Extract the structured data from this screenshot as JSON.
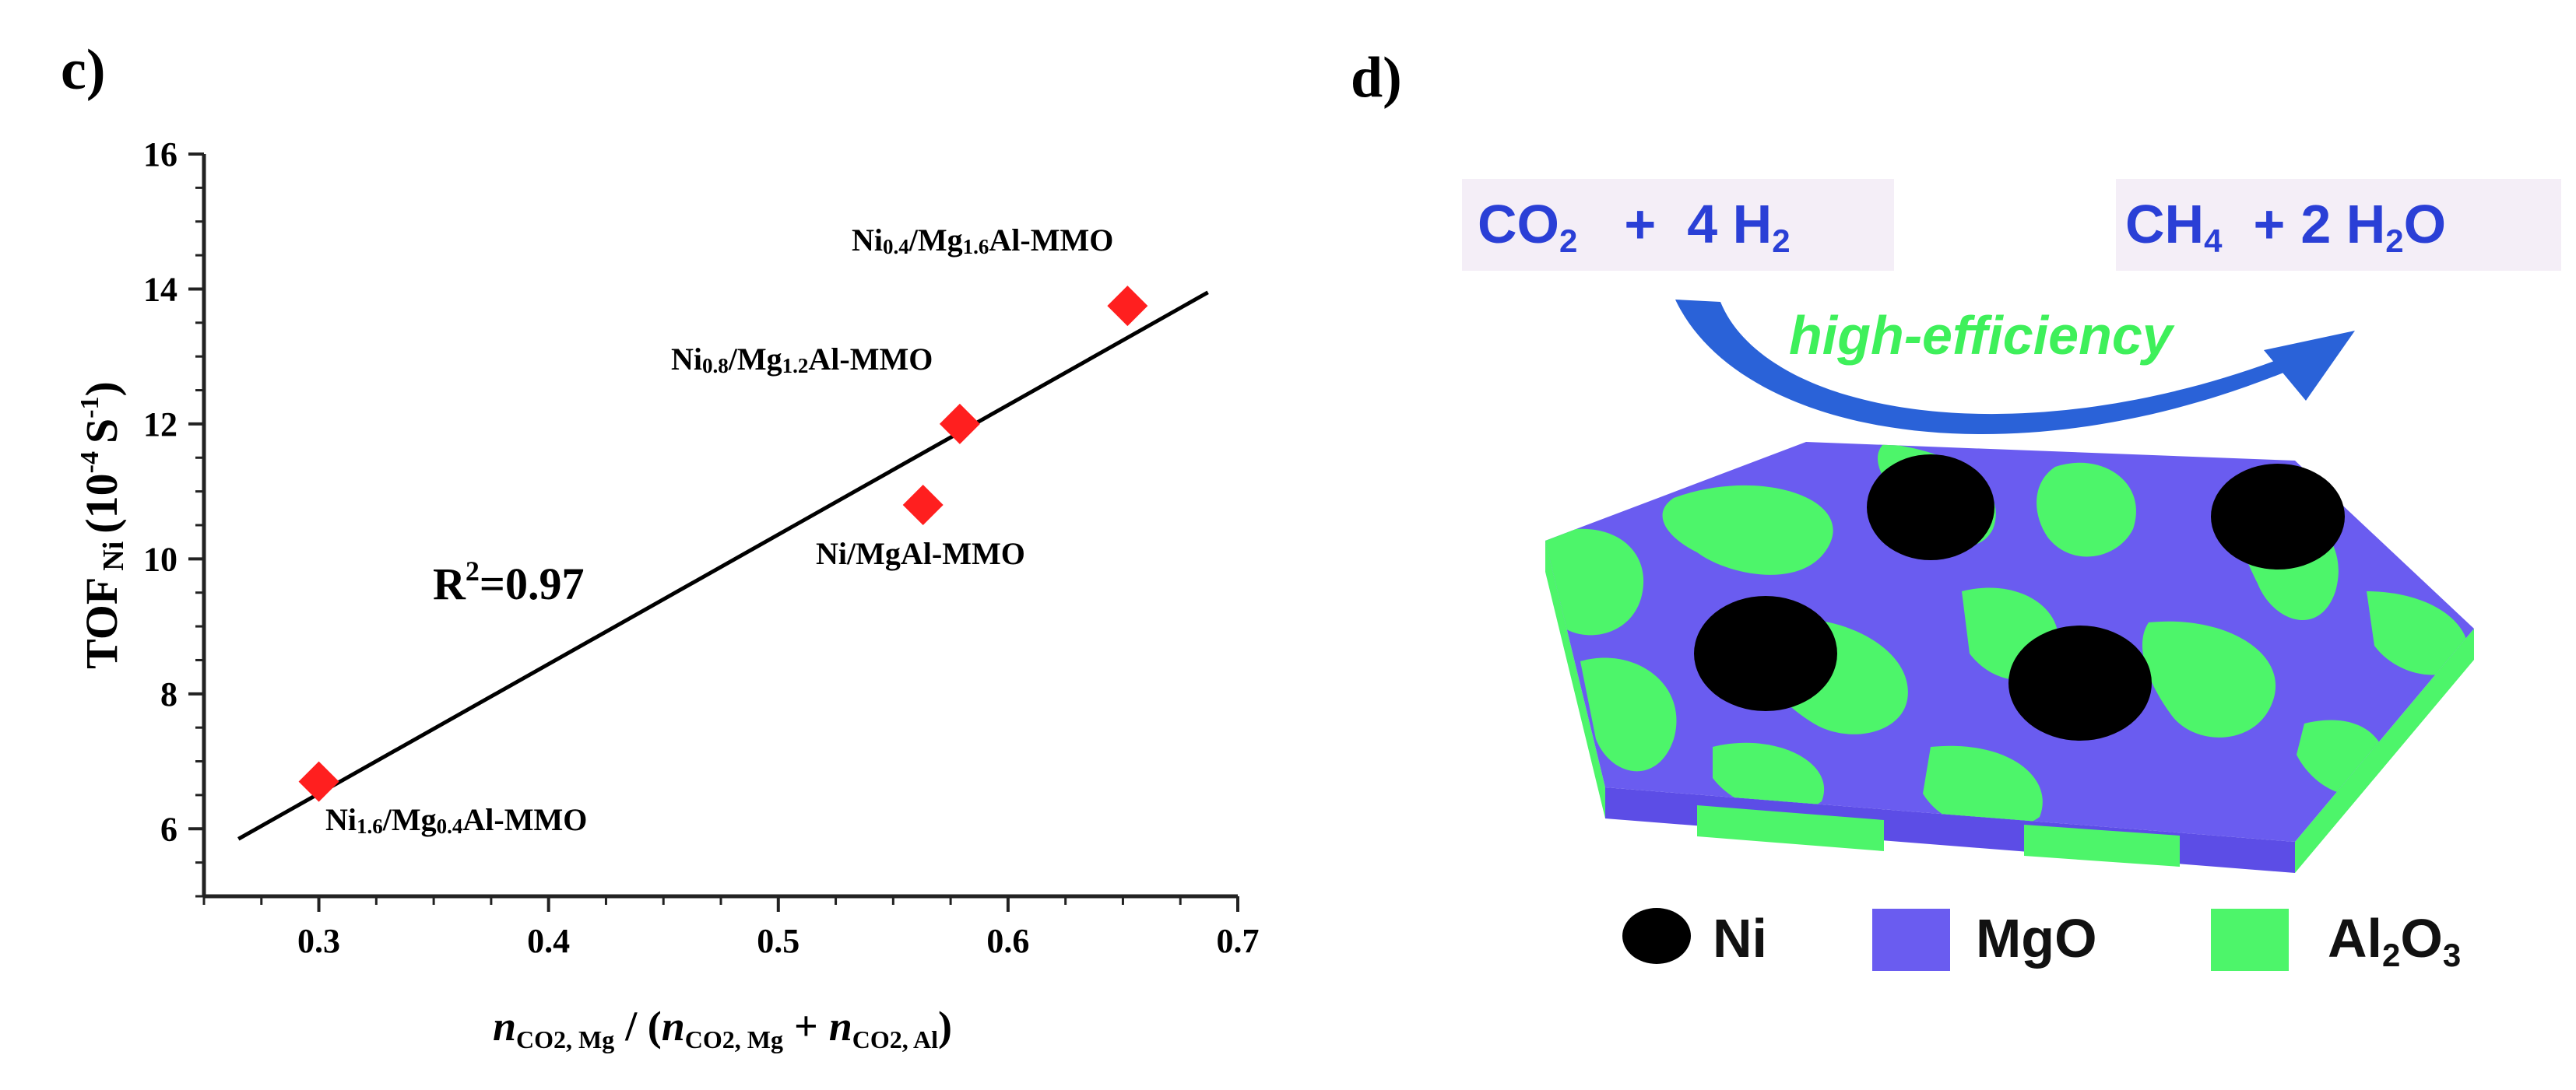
{
  "panel_c_label": "c)",
  "panel_d_label": "d)",
  "chart_data": {
    "type": "scatter",
    "title": "",
    "xlabel": "nCO2, Mg / (nCO2, Mg + nCO2, Al)",
    "ylabel": "TOF Ni (10^-4 S^-1)",
    "xlim": [
      0.25,
      0.7
    ],
    "ylim": [
      5,
      16
    ],
    "xticks": [
      0.3,
      0.4,
      0.5,
      0.6,
      0.7
    ],
    "yticks": [
      6,
      8,
      10,
      12,
      14,
      16
    ],
    "xtick_labels": [
      "0.3",
      "0.4",
      "0.5",
      "0.6",
      "0.7"
    ],
    "ytick_labels": [
      "6",
      "8",
      "10",
      "12",
      "14",
      "16"
    ],
    "marker_color": "#ff1f1f",
    "points": [
      {
        "x": 0.3,
        "y": 6.7,
        "label_main": "Ni",
        "label_sub1": "1.6",
        "label_mid": "/Mg",
        "label_sub2": "0.4",
        "label_end": "Al-MMO"
      },
      {
        "x": 0.563,
        "y": 10.8,
        "label_main": "Ni/MgAl-MMO",
        "label_sub1": "",
        "label_mid": "",
        "label_sub2": "",
        "label_end": ""
      },
      {
        "x": 0.579,
        "y": 12.0,
        "label_main": "Ni",
        "label_sub1": "0.8",
        "label_mid": "/Mg",
        "label_sub2": "1.2",
        "label_end": "Al-MMO"
      },
      {
        "x": 0.652,
        "y": 13.75,
        "label_main": "Ni",
        "label_sub1": "0.4",
        "label_mid": "/Mg",
        "label_sub2": "1.6",
        "label_end": "Al-MMO"
      }
    ],
    "fit_line": {
      "x": [
        0.265,
        0.687
      ],
      "y": [
        5.85,
        13.95
      ]
    },
    "r2_label": "R",
    "r2_sup": "2",
    "r2_value": "=0.97",
    "ylabel_parts": {
      "main": "TOF",
      "sub": "Ni",
      "open": "(10",
      "sup1": "-4",
      "unit": "S",
      "sup2": "-1",
      "close": ")"
    },
    "xlabel_parts": {
      "n": "n",
      "sub1": "CO2, Mg",
      "slash": "/ (",
      "sub2": "CO2, Mg",
      "plus": "+",
      "sub3": "CO2, Al",
      "close": ")"
    }
  },
  "scheme": {
    "reactant_co2": "CO",
    "reactant_co2_sub": "2",
    "reactant_plus": "+",
    "reactant_h2": "4 H",
    "reactant_h2_sub": "2",
    "product_ch4": "CH",
    "product_ch4_sub": "4",
    "product_plus": "+",
    "product_h2o": "2 H",
    "product_h2o_sub": "2",
    "product_h2o_end": "O",
    "arrow_text": "high-efficiency",
    "legend": [
      {
        "name": "Ni",
        "color": "#000000"
      },
      {
        "name": "MgO",
        "color": "#6a5cf0"
      },
      {
        "name": "Al",
        "sub": "2",
        "mid": "O",
        "sub2": "3",
        "color": "#4df56a"
      }
    ],
    "colors": {
      "blue_text": "#2a3fd6",
      "green_text": "#3ef05a",
      "arrow": "#2a62d8",
      "mgo": "#6a5cf0",
      "al2o3": "#4df56a"
    }
  }
}
